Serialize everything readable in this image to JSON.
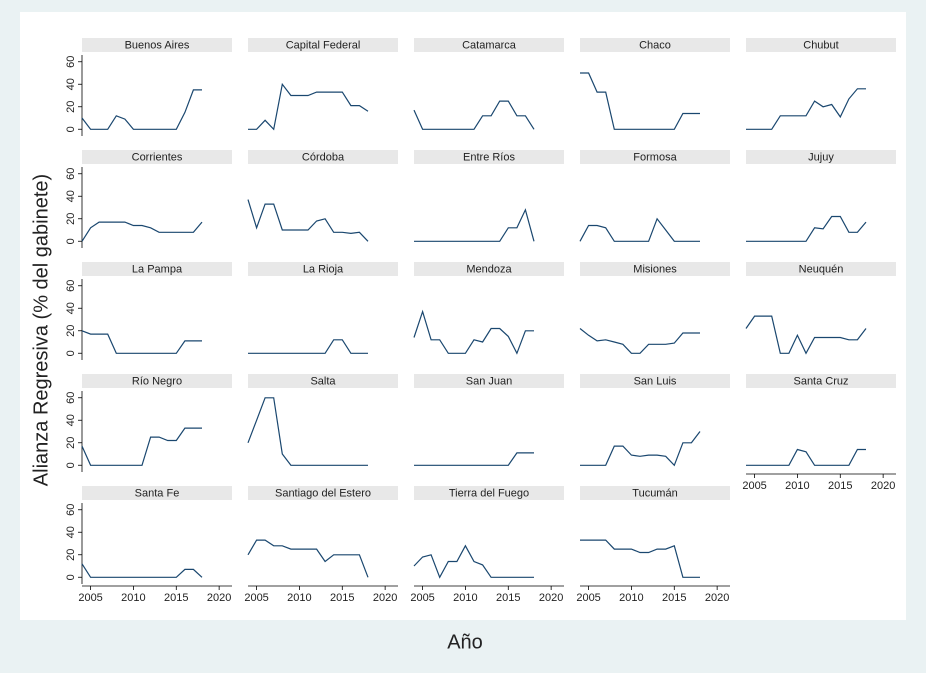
{
  "chart_data": {
    "type": "line",
    "y_label": "Alianza Regresiva (% del gabinete)",
    "x_label": "Año",
    "color": "#1a476f",
    "x": [
      2004,
      2005,
      2006,
      2007,
      2008,
      2009,
      2010,
      2011,
      2012,
      2013,
      2014,
      2015,
      2016,
      2017,
      2018
    ],
    "xlim": [
      2004,
      2021.5
    ],
    "xticks": [
      2005,
      2010,
      2015,
      2020
    ],
    "ylim": [
      -6,
      66
    ],
    "yticks": [
      0,
      20,
      40,
      60
    ],
    "panels": [
      {
        "title": "Buenos Aires",
        "values": [
          10,
          0,
          0,
          0,
          12,
          9,
          0,
          0,
          0,
          0,
          0,
          0,
          15,
          35,
          35
        ]
      },
      {
        "title": "Capital Federal",
        "values": [
          0,
          0,
          8,
          0,
          40,
          30,
          30,
          30,
          33,
          33,
          33,
          33,
          21,
          21,
          16
        ]
      },
      {
        "title": "Catamarca",
        "values": [
          17,
          0,
          0,
          0,
          0,
          0,
          0,
          0,
          12,
          12,
          25,
          25,
          12,
          12,
          0
        ]
      },
      {
        "title": "Chaco",
        "values": [
          50,
          50,
          33,
          33,
          0,
          0,
          0,
          0,
          0,
          0,
          0,
          0,
          14,
          14,
          14
        ]
      },
      {
        "title": "Chubut",
        "values": [
          0,
          0,
          0,
          0,
          12,
          12,
          12,
          12,
          25,
          20,
          22,
          11,
          27,
          36,
          36
        ]
      },
      {
        "title": "Corrientes",
        "values": [
          0,
          12,
          17,
          17,
          17,
          17,
          14,
          14,
          12,
          8,
          8,
          8,
          8,
          8,
          17
        ]
      },
      {
        "title": "Córdoba",
        "values": [
          37,
          12,
          33,
          33,
          10,
          10,
          10,
          10,
          18,
          20,
          8,
          8,
          7,
          8,
          0
        ]
      },
      {
        "title": "Entre Ríos",
        "values": [
          0,
          0,
          0,
          0,
          0,
          0,
          0,
          0,
          0,
          0,
          0,
          12,
          12,
          28,
          0
        ]
      },
      {
        "title": "Formosa",
        "values": [
          0,
          14,
          14,
          12,
          0,
          0,
          0,
          0,
          0,
          20,
          10,
          0,
          0,
          0,
          0
        ]
      },
      {
        "title": "Jujuy",
        "values": [
          0,
          0,
          0,
          0,
          0,
          0,
          0,
          0,
          12,
          11,
          22,
          22,
          8,
          8,
          17
        ]
      },
      {
        "title": "La Pampa",
        "values": [
          20,
          17,
          17,
          17,
          0,
          0,
          0,
          0,
          0,
          0,
          0,
          0,
          11,
          11,
          11
        ]
      },
      {
        "title": "La Rioja",
        "values": [
          0,
          0,
          0,
          0,
          0,
          0,
          0,
          0,
          0,
          0,
          12,
          12,
          0,
          0,
          0
        ]
      },
      {
        "title": "Mendoza",
        "values": [
          14,
          37,
          12,
          12,
          0,
          0,
          0,
          12,
          10,
          22,
          22,
          15,
          0,
          20,
          20
        ]
      },
      {
        "title": "Misiones",
        "values": [
          22,
          16,
          11,
          12,
          10,
          8,
          0,
          0,
          8,
          8,
          8,
          9,
          18,
          18,
          18
        ]
      },
      {
        "title": "Neuquén",
        "values": [
          22,
          33,
          33,
          33,
          0,
          0,
          16,
          0,
          14,
          14,
          14,
          14,
          12,
          12,
          22
        ]
      },
      {
        "title": "Río Negro",
        "values": [
          17,
          0,
          0,
          0,
          0,
          0,
          0,
          0,
          25,
          25,
          22,
          22,
          33,
          33,
          33
        ]
      },
      {
        "title": "Salta",
        "values": [
          20,
          40,
          60,
          60,
          10,
          0,
          0,
          0,
          0,
          0,
          0,
          0,
          0,
          0,
          0
        ]
      },
      {
        "title": "San Juan",
        "values": [
          0,
          0,
          0,
          0,
          0,
          0,
          0,
          0,
          0,
          0,
          0,
          0,
          11,
          11,
          11
        ]
      },
      {
        "title": "San Luis",
        "values": [
          0,
          0,
          0,
          0,
          17,
          17,
          9,
          8,
          9,
          9,
          8,
          0,
          20,
          20,
          30
        ]
      },
      {
        "title": "Santa Cruz",
        "values": [
          0,
          0,
          0,
          0,
          0,
          0,
          14,
          12,
          0,
          0,
          0,
          0,
          0,
          14,
          14
        ]
      },
      {
        "title": "Santa Fe",
        "values": [
          12,
          0,
          0,
          0,
          0,
          0,
          0,
          0,
          0,
          0,
          0,
          0,
          7,
          7,
          0
        ]
      },
      {
        "title": "Santiago del Estero",
        "values": [
          20,
          33,
          33,
          28,
          28,
          25,
          25,
          25,
          25,
          14,
          20,
          20,
          20,
          20,
          0
        ]
      },
      {
        "title": "Tierra del Fuego",
        "values": [
          10,
          18,
          20,
          0,
          14,
          14,
          28,
          14,
          11,
          0,
          0,
          0,
          0,
          0,
          0
        ]
      },
      {
        "title": "Tucumán",
        "values": [
          33,
          33,
          33,
          33,
          25,
          25,
          25,
          22,
          22,
          25,
          25,
          28,
          0,
          0,
          0
        ]
      }
    ]
  }
}
